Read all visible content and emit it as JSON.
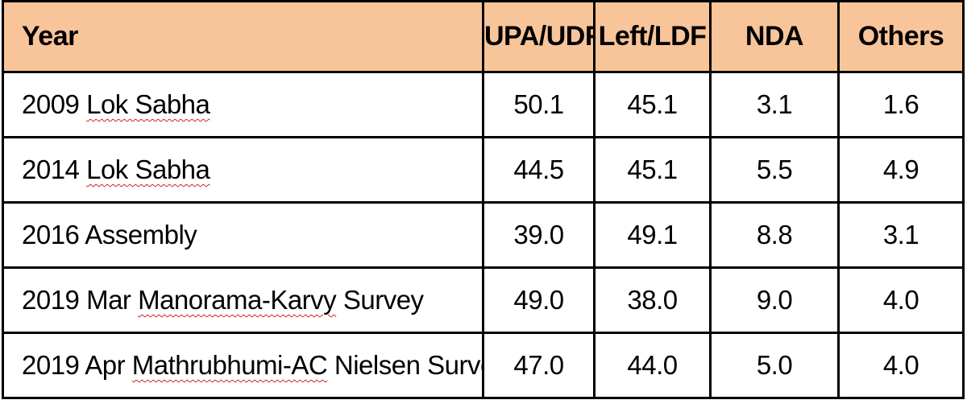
{
  "table": {
    "headers": {
      "year": "Year",
      "upa_udf": "UPA/UDF",
      "left_ldf": "Left/LDF",
      "nda": "NDA",
      "others": "Others"
    },
    "rows": [
      {
        "year_prefix": "2009 ",
        "year_marked": "Lok Sabha",
        "year_suffix": "",
        "upa_udf": "50.1",
        "left_ldf": "45.1",
        "nda": "3.1",
        "others": "1.6"
      },
      {
        "year_prefix": "2014 ",
        "year_marked": "Lok Sabha",
        "year_suffix": "",
        "upa_udf": "44.5",
        "left_ldf": "45.1",
        "nda": "5.5",
        "others": "4.9"
      },
      {
        "year_prefix": "2016 Assembly",
        "year_marked": "",
        "year_suffix": "",
        "upa_udf": "39.0",
        "left_ldf": "49.1",
        "nda": "8.8",
        "others": "3.1"
      },
      {
        "year_prefix": "2019 Mar ",
        "year_marked": "Manorama-Karvy",
        "year_suffix": " Survey",
        "upa_udf": "49.0",
        "left_ldf": "38.0",
        "nda": "9.0",
        "others": "4.0"
      },
      {
        "year_prefix": "2019 Apr ",
        "year_marked": "Mathrubhumi-AC",
        "year_suffix": " Nielsen Survey",
        "upa_udf": "47.0",
        "left_ldf": "44.0",
        "nda": "5.0",
        "others": "4.0"
      }
    ],
    "colors": {
      "header_background": "#f8c49a",
      "border": "#000000",
      "spellcheck_underline": "#d22020"
    }
  }
}
